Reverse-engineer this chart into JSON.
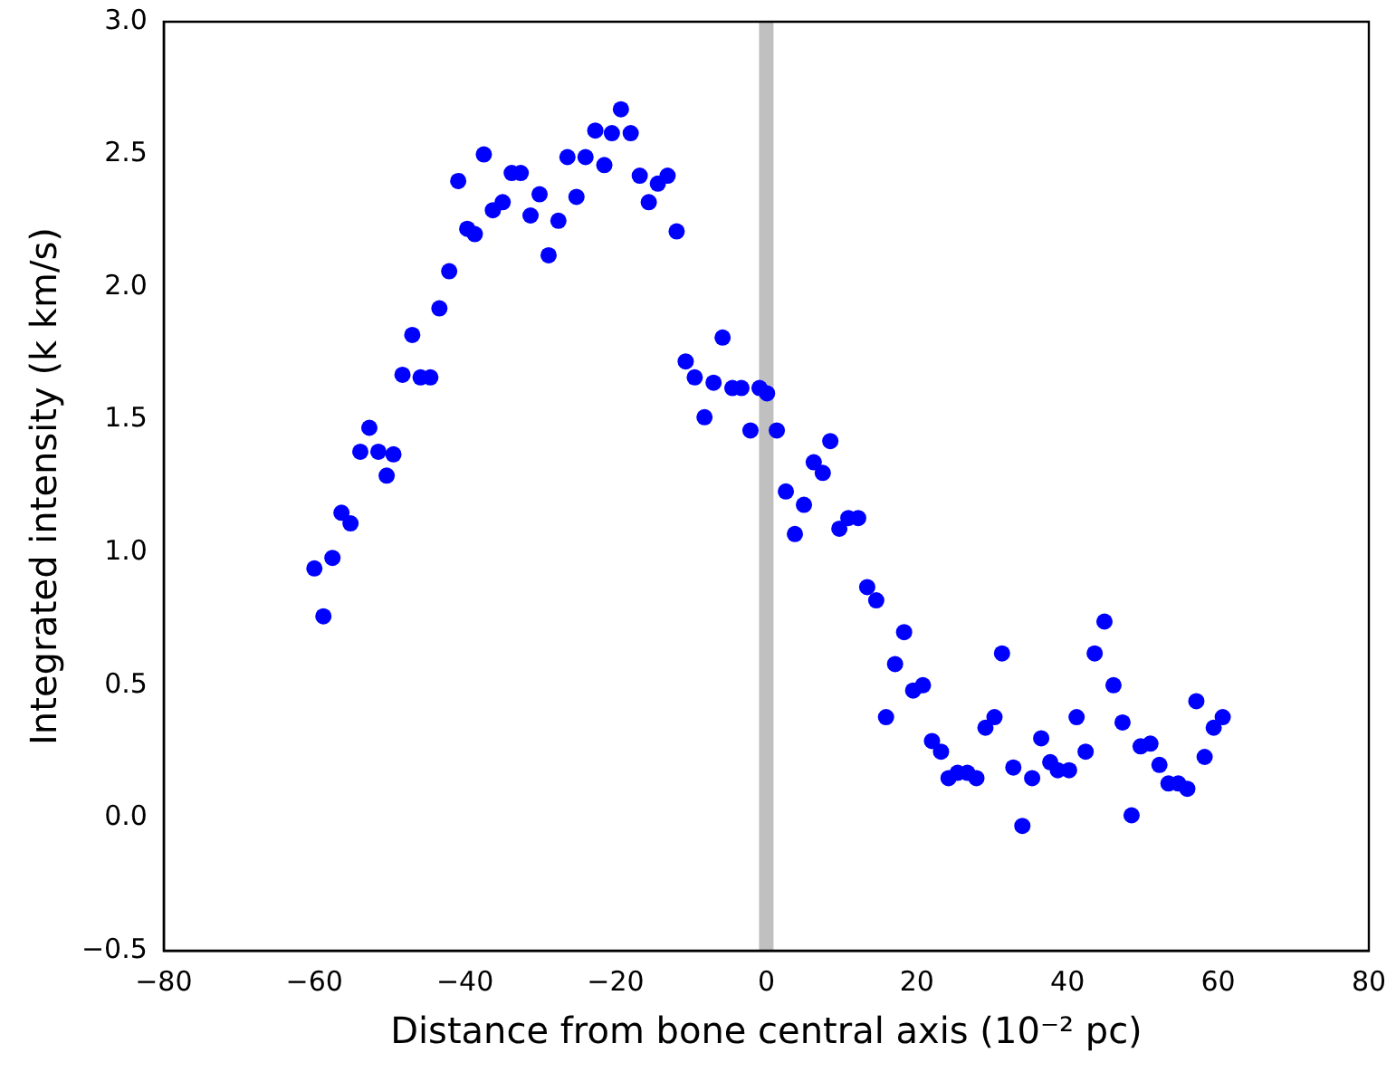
{
  "chart_data": {
    "type": "scatter",
    "xlabel": "Distance from bone central axis (10⁻² pc)",
    "ylabel": "Integrated intensity (k km/s)",
    "x": [
      -60.0,
      -58.8,
      -57.6,
      -56.4,
      -55.2,
      -53.9,
      -52.7,
      -51.5,
      -50.4,
      -49.5,
      -48.3,
      -47.0,
      -45.9,
      -44.6,
      -43.4,
      -42.1,
      -40.9,
      -39.7,
      -38.7,
      -37.5,
      -36.3,
      -35.0,
      -33.8,
      -32.6,
      -31.3,
      -30.1,
      -28.9,
      -27.6,
      -26.4,
      -25.2,
      -24.0,
      -22.7,
      -21.5,
      -20.5,
      -19.3,
      -18.0,
      -16.8,
      -15.6,
      -14.4,
      -13.1,
      -11.9,
      -10.7,
      -9.5,
      -8.2,
      -7.0,
      -5.8,
      -4.5,
      -3.3,
      -2.1,
      -0.9,
      0.1,
      1.4,
      2.6,
      3.8,
      5.0,
      6.3,
      7.5,
      8.5,
      9.7,
      10.9,
      12.2,
      13.4,
      14.6,
      15.9,
      17.1,
      18.3,
      19.5,
      20.8,
      22.0,
      23.2,
      24.2,
      25.4,
      26.7,
      27.9,
      29.1,
      30.3,
      31.3,
      32.8,
      34.0,
      35.3,
      36.5,
      37.7,
      38.7,
      40.2,
      41.2,
      42.4,
      43.6,
      44.9,
      46.1,
      47.3,
      48.5,
      49.7,
      51.0,
      52.2,
      53.4,
      54.7,
      55.9,
      57.1,
      58.2,
      59.4,
      60.6
    ],
    "series": [
      {
        "color": "#0000ff",
        "values": [
          0.94,
          0.76,
          0.98,
          1.15,
          1.11,
          1.38,
          1.47,
          1.38,
          1.29,
          1.37,
          1.67,
          1.82,
          1.66,
          1.66,
          1.92,
          2.06,
          2.4,
          2.22,
          2.2,
          2.5,
          2.29,
          2.32,
          2.43,
          2.43,
          2.27,
          2.35,
          2.12,
          2.25,
          2.49,
          2.34,
          2.49,
          2.59,
          2.46,
          2.58,
          2.67,
          2.58,
          2.42,
          2.32,
          2.39,
          2.42,
          2.21,
          1.72,
          1.66,
          1.51,
          1.64,
          1.81,
          1.62,
          1.62,
          1.46,
          1.62,
          1.6,
          1.46,
          1.23,
          1.07,
          1.18,
          1.34,
          1.3,
          1.42,
          1.09,
          1.13,
          1.13,
          0.87,
          0.82,
          0.38,
          0.58,
          0.7,
          0.48,
          0.5,
          0.29,
          0.25,
          0.15,
          0.17,
          0.17,
          0.15,
          0.34,
          0.38,
          0.62,
          0.19,
          -0.03,
          0.15,
          0.3,
          0.21,
          0.18,
          0.18,
          0.38,
          0.25,
          0.62,
          0.74,
          0.5,
          0.36,
          0.01,
          0.27,
          0.28,
          0.2,
          0.13,
          0.13,
          0.11,
          0.44,
          0.23,
          0.34,
          0.38
        ]
      }
    ],
    "xlim": [
      -80,
      80
    ],
    "xticks": [
      {
        "value": -80,
        "label": "−80"
      },
      {
        "value": -60,
        "label": "−60"
      },
      {
        "value": -40,
        "label": "−40"
      },
      {
        "value": -20,
        "label": "−20"
      },
      0,
      20,
      40,
      60,
      80
    ],
    "ylim": [
      -0.5,
      3.0
    ],
    "yticks": [
      {
        "value": -0.5,
        "label": "−0.5"
      },
      {
        "value": 0,
        "label": "0.0"
      },
      {
        "value": 0.5,
        "label": "0.5"
      },
      {
        "value": 1,
        "label": "1.0"
      },
      {
        "value": 1.5,
        "label": "1.5"
      },
      {
        "value": 2,
        "label": "2.0"
      },
      {
        "value": 2.5,
        "label": "2.5"
      },
      {
        "value": 3,
        "label": "3.0"
      }
    ],
    "ref_lines": [
      {
        "axis": "x",
        "value": 0,
        "color": "#c0c0c0"
      }
    ],
    "grid": false,
    "legend": false,
    "marker": "circle"
  }
}
